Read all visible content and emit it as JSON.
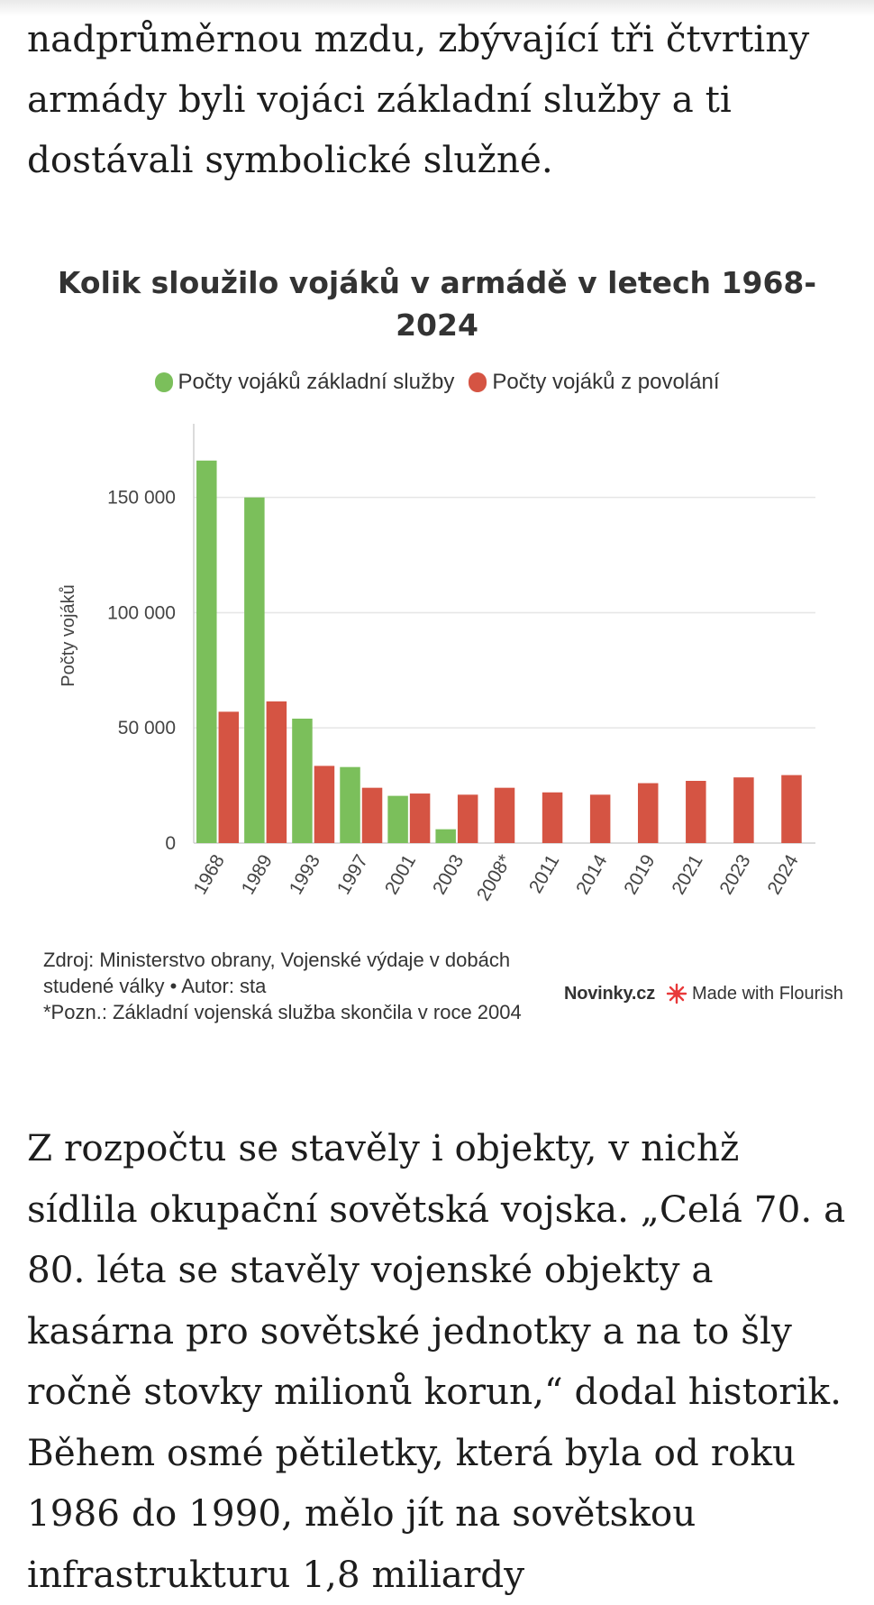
{
  "article": {
    "paragraph_top": "nadprůměrnou mzdu, zbývající tři čtvrtiny armády byli vojáci základní služby a ti dostávali symbolické služné.",
    "paragraph_bottom": "Z rozpočtu se stavěly i objekty, v nichž sídlila okupační sovětská vojska. „Celá 70. a 80. léta se stavěly vojenské objekty a kasárna pro sovětské jednotky a na to šly ročně stovky milionů korun,“ dodal historik. Během osmé pětiletky, která byla od roku 1986 do 1990, mělo jít na sovětskou infrastrukturu 1,8 miliardy"
  },
  "chart_data": {
    "type": "bar",
    "title": "Kolik sloužilo vojáků v armádě v letech 1968-2024",
    "ylabel": "Počty vojáků",
    "xlabel": "",
    "categories": [
      "1968",
      "1989",
      "1993",
      "1997",
      "2001",
      "2003",
      "2008*",
      "2011",
      "2014",
      "2019",
      "2021",
      "2023",
      "2024"
    ],
    "series": [
      {
        "name": "Počty vojáků základní služby",
        "color": "#7bbf5b",
        "values": [
          166000,
          150000,
          54000,
          33000,
          20500,
          6000,
          null,
          null,
          null,
          null,
          null,
          null,
          null
        ]
      },
      {
        "name": "Počty vojáků z povolání",
        "color": "#d55443",
        "values": [
          57000,
          61500,
          33500,
          24000,
          21500,
          21000,
          24000,
          22000,
          21000,
          26000,
          27000,
          28500,
          29500
        ]
      }
    ],
    "ylim": [
      0,
      180000
    ],
    "yticks": [
      0,
      50000,
      100000,
      150000
    ],
    "ytick_labels": [
      "0",
      "50 000",
      "100 000",
      "150 000"
    ],
    "grid": true,
    "legend": "top-center"
  },
  "source": {
    "line1": "Zdroj: Ministerstvo obrany, Vojenské výdaje v dobách studené války • Autor: sta",
    "line2": "*Pozn.: Základní vojenská služba skončila v roce 2004"
  },
  "branding": {
    "logo": "Novinky.cz",
    "flourish": "Made with Flourish"
  }
}
